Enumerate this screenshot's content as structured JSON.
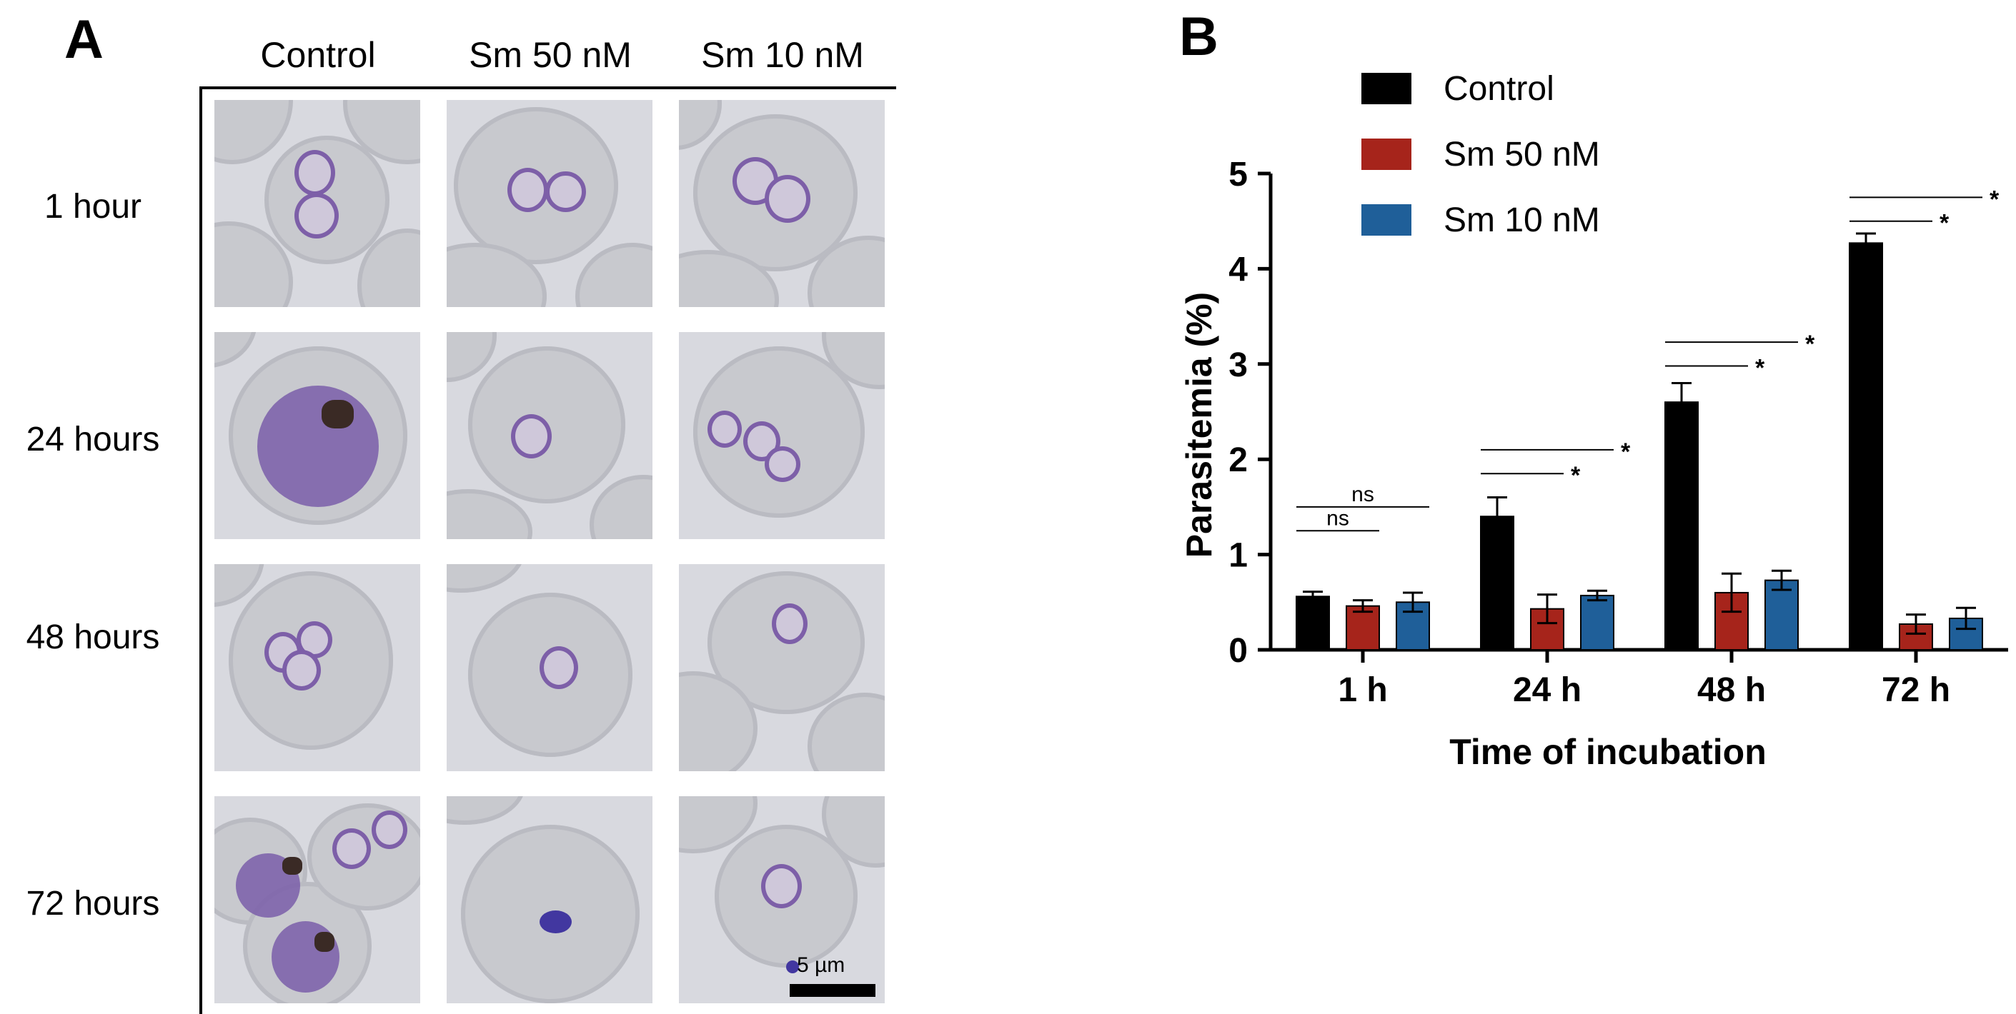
{
  "panel_a": {
    "letter": "A",
    "columns": [
      "Control",
      "Sm 50 nM",
      "Sm 10 nM"
    ],
    "rows": [
      "1 hour",
      "24 hours",
      "48 hours",
      "72 hours"
    ],
    "scale_label": "5 µm"
  },
  "panel_b": {
    "letter": "B"
  },
  "chart_data": {
    "type": "bar",
    "title": "",
    "xlabel": "Time of incubation",
    "ylabel": "Parasitemia (%)",
    "ylim": [
      0,
      5
    ],
    "yticks": [
      "0",
      "1",
      "2",
      "3",
      "4",
      "5"
    ],
    "categories": [
      "1 h",
      "24 h",
      "48 h",
      "72 h"
    ],
    "series": [
      {
        "name": "Control",
        "color": "#000000",
        "values": [
          0.56,
          1.4,
          2.6,
          4.27
        ],
        "errors": [
          0.05,
          0.2,
          0.2,
          0.1
        ]
      },
      {
        "name": "Sm 50 nM",
        "color": "#a6241b",
        "values": [
          0.46,
          0.43,
          0.6,
          0.27
        ],
        "errors": [
          0.06,
          0.15,
          0.2,
          0.1
        ]
      },
      {
        "name": "Sm 10 nM",
        "color": "#1f5f99",
        "values": [
          0.5,
          0.57,
          0.73,
          0.33
        ],
        "errors": [
          0.1,
          0.05,
          0.1,
          0.11
        ]
      }
    ],
    "legend_position": "top-left",
    "significance": [
      {
        "group": "1 h",
        "label": "ns",
        "from": "Control",
        "to": "Sm 50 nM",
        "level": 1.25
      },
      {
        "group": "1 h",
        "label": "ns",
        "from": "Control",
        "to": "Sm 10 nM",
        "level": 1.5
      },
      {
        "group": "24 h",
        "label": "*",
        "from": "Control",
        "to": "Sm 50 nM",
        "level": 1.85
      },
      {
        "group": "24 h",
        "label": "*",
        "from": "Control",
        "to": "Sm 10 nM",
        "level": 2.1
      },
      {
        "group": "48 h",
        "label": "*",
        "from": "Control",
        "to": "Sm 50 nM",
        "level": 2.98
      },
      {
        "group": "48 h",
        "label": "*",
        "from": "Control",
        "to": "Sm 10 nM",
        "level": 3.23
      },
      {
        "group": "72 h",
        "label": "*",
        "from": "Control",
        "to": "Sm 50 nM",
        "level": 4.5
      },
      {
        "group": "72 h",
        "label": "*",
        "from": "Control",
        "to": "Sm 10 nM",
        "level": 4.75
      }
    ]
  }
}
